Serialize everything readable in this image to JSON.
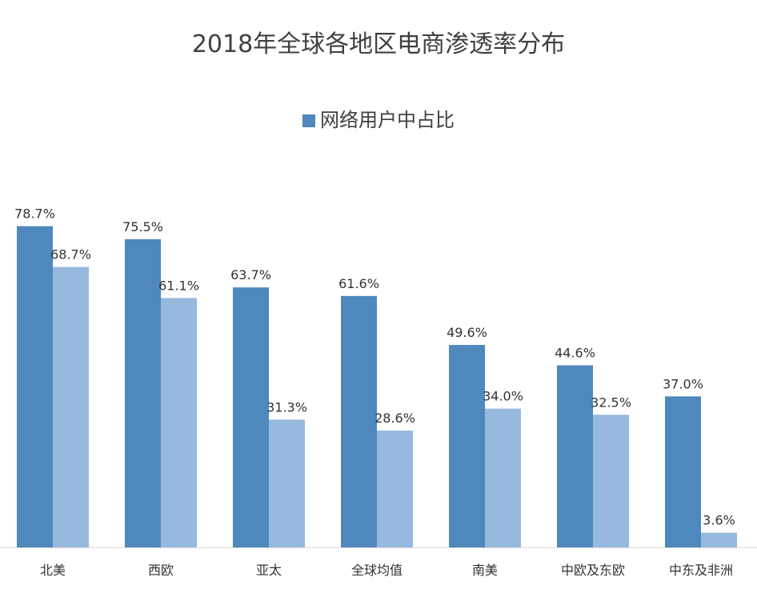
{
  "chart_data": {
    "type": "bar",
    "title": "2018年全球各地区电商渗透率分布",
    "categories": [
      "北美",
      "西欧",
      "亚太",
      "全球均值",
      "南美",
      "中欧及东欧",
      "中东及非洲"
    ],
    "series": [
      {
        "name": "网络用户中占比",
        "color": "#4E88BD",
        "labels": [
          "78.7%",
          "75.5%",
          "63.7%",
          "61.6%",
          "49.6%",
          "44.6%",
          "37.0%"
        ],
        "values": [
          78.7,
          75.5,
          63.7,
          61.6,
          49.6,
          44.6,
          37.0
        ]
      },
      {
        "color": "#98B9DE",
        "labels": [
          "68.7%",
          "61.1%",
          "31.3%",
          "28.6%",
          "34.0%",
          "32.5%",
          "3.6%"
        ],
        "values": [
          68.7,
          61.1,
          31.3,
          28.6,
          34.0,
          32.5,
          3.6
        ]
      }
    ],
    "ylim": [
      0,
      80
    ],
    "grid": false,
    "legend_position": "top"
  }
}
